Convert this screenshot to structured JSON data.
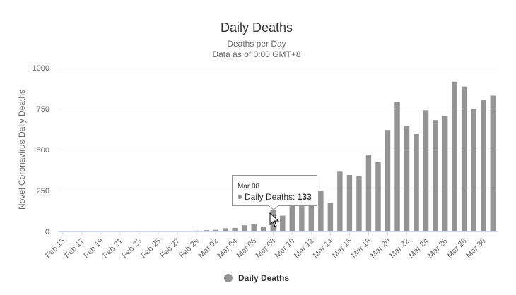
{
  "colors": {
    "bar": "#949494",
    "grid": "#e6e6e6",
    "axis": "#ccd6eb",
    "tooltip_border": "#949494"
  },
  "chart_data": {
    "type": "bar",
    "title": "Daily Deaths",
    "subtitle_lines": [
      "Deaths per Day",
      "Data as of 0:00 GMT+8"
    ],
    "ylabel": "Novel Coronavirus Daily Deaths",
    "xlabel": "",
    "ylim": [
      0,
      1000
    ],
    "yticks": [
      0,
      250,
      500,
      750,
      1000
    ],
    "grid": true,
    "legend_position": "bottom-center",
    "categories": [
      "Feb 15",
      "Feb 16",
      "Feb 17",
      "Feb 18",
      "Feb 19",
      "Feb 20",
      "Feb 21",
      "Feb 22",
      "Feb 23",
      "Feb 24",
      "Feb 25",
      "Feb 26",
      "Feb 27",
      "Feb 28",
      "Feb 29",
      "Mar 01",
      "Mar 02",
      "Mar 03",
      "Mar 04",
      "Mar 05",
      "Mar 06",
      "Mar 07",
      "Mar 08",
      "Mar 09",
      "Mar 10",
      "Mar 11",
      "Mar 12",
      "Mar 13",
      "Mar 14",
      "Mar 15",
      "Mar 16",
      "Mar 17",
      "Mar 18",
      "Mar 19",
      "Mar 20",
      "Mar 21",
      "Mar 22",
      "Mar 23",
      "Mar 24",
      "Mar 25",
      "Mar 26",
      "Mar 27",
      "Mar 28",
      "Mar 29",
      "Mar 30",
      "Mar 31"
    ],
    "x_tick_labels": [
      "Feb 15",
      "Feb 17",
      "Feb 19",
      "Feb 21",
      "Feb 23",
      "Feb 25",
      "Feb 27",
      "Feb 29",
      "Mar 02",
      "Mar 04",
      "Mar 06",
      "Mar 08",
      "Mar 10",
      "Mar 12",
      "Mar 14",
      "Mar 16",
      "Mar 18",
      "Mar 20",
      "Mar 22",
      "Mar 24",
      "Mar 26",
      "Mar 28",
      "Mar 30"
    ],
    "series": [
      {
        "name": "Daily Deaths",
        "values": [
          0,
          0,
          0,
          0,
          0,
          0,
          0,
          0,
          0,
          0,
          0,
          0,
          0,
          0,
          5,
          8,
          10,
          20,
          22,
          38,
          45,
          30,
          133,
          97,
          168,
          196,
          190,
          250,
          175,
          365,
          345,
          340,
          470,
          425,
          620,
          790,
          645,
          595,
          740,
          680,
          705,
          915,
          885,
          750,
          805,
          830
        ]
      }
    ],
    "tooltip": {
      "date": "Mar 08",
      "series_label": "Daily Deaths:",
      "value": "133"
    }
  }
}
